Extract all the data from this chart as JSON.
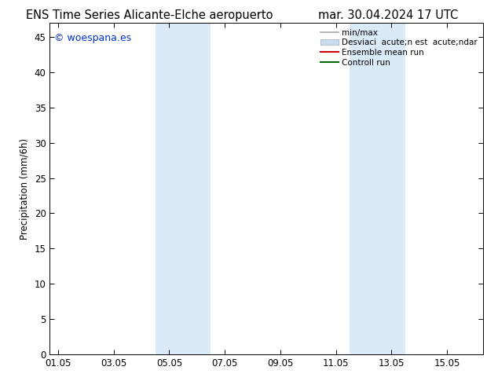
{
  "title_left": "ENS Time Series Alicante-Elche aeropuerto",
  "title_right": "mar. 30.04.2024 17 UTC",
  "ylabel": "Precipitation (mm/6h)",
  "ylim": [
    0,
    47
  ],
  "yticks": [
    0,
    5,
    10,
    15,
    20,
    25,
    30,
    35,
    40,
    45
  ],
  "xtick_labels": [
    "01.05",
    "03.05",
    "05.05",
    "07.05",
    "09.05",
    "11.05",
    "13.05",
    "15.05"
  ],
  "xtick_positions": [
    0,
    2,
    4,
    6,
    8,
    10,
    12,
    14
  ],
  "xlim": [
    -0.3,
    15.3
  ],
  "shaded_regions": [
    {
      "xmin": 3.5,
      "xmax": 5.5,
      "color": "#daeaf8"
    },
    {
      "xmin": 10.5,
      "xmax": 12.5,
      "color": "#daeaf8"
    }
  ],
  "watermark_text": "© woespana.es",
  "watermark_color": "#0033cc",
  "bg_color": "#ffffff",
  "legend_line1_label": "min/max",
  "legend_line1_color": "#aaaaaa",
  "legend_band_label": "Desviaci  acute;n est  acute;ndar",
  "legend_band_color": "#c8ddf0",
  "legend_ens_label": "Ensemble mean run",
  "legend_ens_color": "#cc0000",
  "legend_ctrl_label": "Controll run",
  "legend_ctrl_color": "#006600",
  "tick_label_fontsize": 8.5,
  "title_fontsize": 10.5,
  "ylabel_fontsize": 8.5,
  "watermark_fontsize": 9
}
